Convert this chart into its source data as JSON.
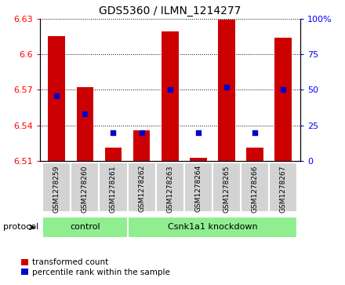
{
  "title": "GDS5360 / ILMN_1214277",
  "samples": [
    "GSM1278259",
    "GSM1278260",
    "GSM1278261",
    "GSM1278262",
    "GSM1278263",
    "GSM1278264",
    "GSM1278265",
    "GSM1278266",
    "GSM1278267"
  ],
  "transformed_count": [
    6.615,
    6.572,
    6.521,
    6.536,
    6.619,
    6.513,
    6.629,
    6.521,
    6.614
  ],
  "percentile_rank": [
    46,
    33,
    20,
    20,
    50,
    20,
    52,
    20,
    50
  ],
  "ylim_left": [
    6.51,
    6.63
  ],
  "ylim_right": [
    0,
    100
  ],
  "yticks_left": [
    6.51,
    6.54,
    6.57,
    6.6,
    6.63
  ],
  "yticks_right": [
    0,
    25,
    50,
    75,
    100
  ],
  "ytick_labels_left": [
    "6.51",
    "6.54",
    "6.57",
    "6.6",
    "6.63"
  ],
  "ytick_labels_right": [
    "0",
    "25",
    "50",
    "75",
    "100%"
  ],
  "bar_color": "#cc0000",
  "marker_color": "#0000cc",
  "bar_width": 0.6,
  "bar_base": 6.51,
  "ctrl_count": 3,
  "kd_count": 6,
  "ctrl_label": "control",
  "kd_label": "Csnk1a1 knockdown",
  "group_color": "#90ee90",
  "label_area_color": "#d3d3d3",
  "protocol_label": "protocol",
  "legend_items": [
    {
      "label": "transformed count",
      "color": "#cc0000"
    },
    {
      "label": "percentile rank within the sample",
      "color": "#0000cc"
    }
  ],
  "title_fontsize": 10,
  "tick_fontsize": 8,
  "sample_fontsize": 6.5,
  "group_fontsize": 8,
  "legend_fontsize": 7.5
}
